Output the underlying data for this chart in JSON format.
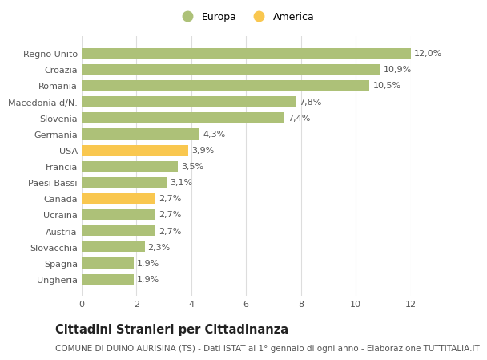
{
  "categories": [
    "Ungheria",
    "Spagna",
    "Slovacchia",
    "Austria",
    "Ucraina",
    "Canada",
    "Paesi Bassi",
    "Francia",
    "USA",
    "Germania",
    "Slovenia",
    "Macedonia d/N.",
    "Romania",
    "Croazia",
    "Regno Unito"
  ],
  "values": [
    1.9,
    1.9,
    2.3,
    2.7,
    2.7,
    2.7,
    3.1,
    3.5,
    3.9,
    4.3,
    7.4,
    7.8,
    10.5,
    10.9,
    12.0
  ],
  "colors": [
    "#adc178",
    "#adc178",
    "#adc178",
    "#adc178",
    "#adc178",
    "#f9c74f",
    "#adc178",
    "#adc178",
    "#f9c74f",
    "#adc178",
    "#adc178",
    "#adc178",
    "#adc178",
    "#adc178",
    "#adc178"
  ],
  "bar_color_europa": "#adc178",
  "bar_color_america": "#f9c74f",
  "legend_europa": "Europa",
  "legend_america": "America",
  "title": "Cittadini Stranieri per Cittadinanza",
  "subtitle": "COMUNE DI DUINO AURISINA (TS) - Dati ISTAT al 1° gennaio di ogni anno - Elaborazione TUTTITALIA.IT",
  "xlim": [
    0,
    12
  ],
  "xticks": [
    0,
    2,
    4,
    6,
    8,
    10,
    12
  ],
  "background_color": "#ffffff",
  "grid_color": "#dddddd",
  "bar_height": 0.65,
  "label_fontsize": 8.0,
  "ytick_fontsize": 8.0,
  "xtick_fontsize": 8.0,
  "title_fontsize": 10.5,
  "subtitle_fontsize": 7.5,
  "legend_fontsize": 9.0
}
